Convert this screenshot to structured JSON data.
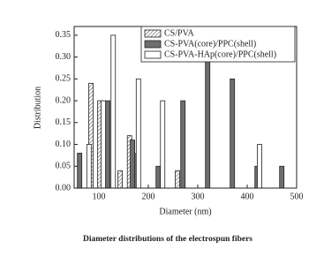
{
  "chart_data": {
    "type": "bar",
    "caption": "Diameter distributions of the electrospun fibers",
    "xlabel": "Diameter (nm)",
    "ylabel": "Distribution",
    "xlim": [
      50,
      500
    ],
    "xticks": [
      100,
      200,
      300,
      400,
      500
    ],
    "ylim": [
      0,
      0.37
    ],
    "yticks": [
      {
        "value": 0,
        "label": "0.00"
      },
      0.05,
      {
        "value": 0.1,
        "label": "0.10"
      },
      0.15,
      {
        "value": 0.2,
        "label": "0.20"
      },
      0.25,
      {
        "value": 0.3,
        "label": "0.30"
      },
      0.35
    ],
    "legend": "upper right",
    "series": [
      {
        "name": "CS/PVA",
        "color": "#ffffff",
        "hatch": true,
        "x": [
          84,
          102,
          143,
          162,
          259
        ],
        "values": [
          0.24,
          0.2,
          0.04,
          0.12,
          0.04
        ]
      },
      {
        "name": "CS-PVA(core)/PPC(shell)",
        "color": "#6e6e6e",
        "hatch": false,
        "x": [
          61,
          118,
          168,
          179,
          220,
          270,
          320,
          370,
          420,
          470
        ],
        "values": [
          0.08,
          0.2,
          0.11,
          0.08,
          0.05,
          0.2,
          0.3,
          0.25,
          0.05,
          0.05
        ]
      },
      {
        "name": "CS-PVA-HAp(core)/PPC(shell)",
        "color": "#ffffff",
        "hatch": false,
        "x": [
          80,
          109,
          129,
          180,
          229,
          425
        ],
        "values": [
          0.1,
          0.2,
          0.35,
          0.25,
          0.2,
          0.1
        ]
      }
    ]
  }
}
